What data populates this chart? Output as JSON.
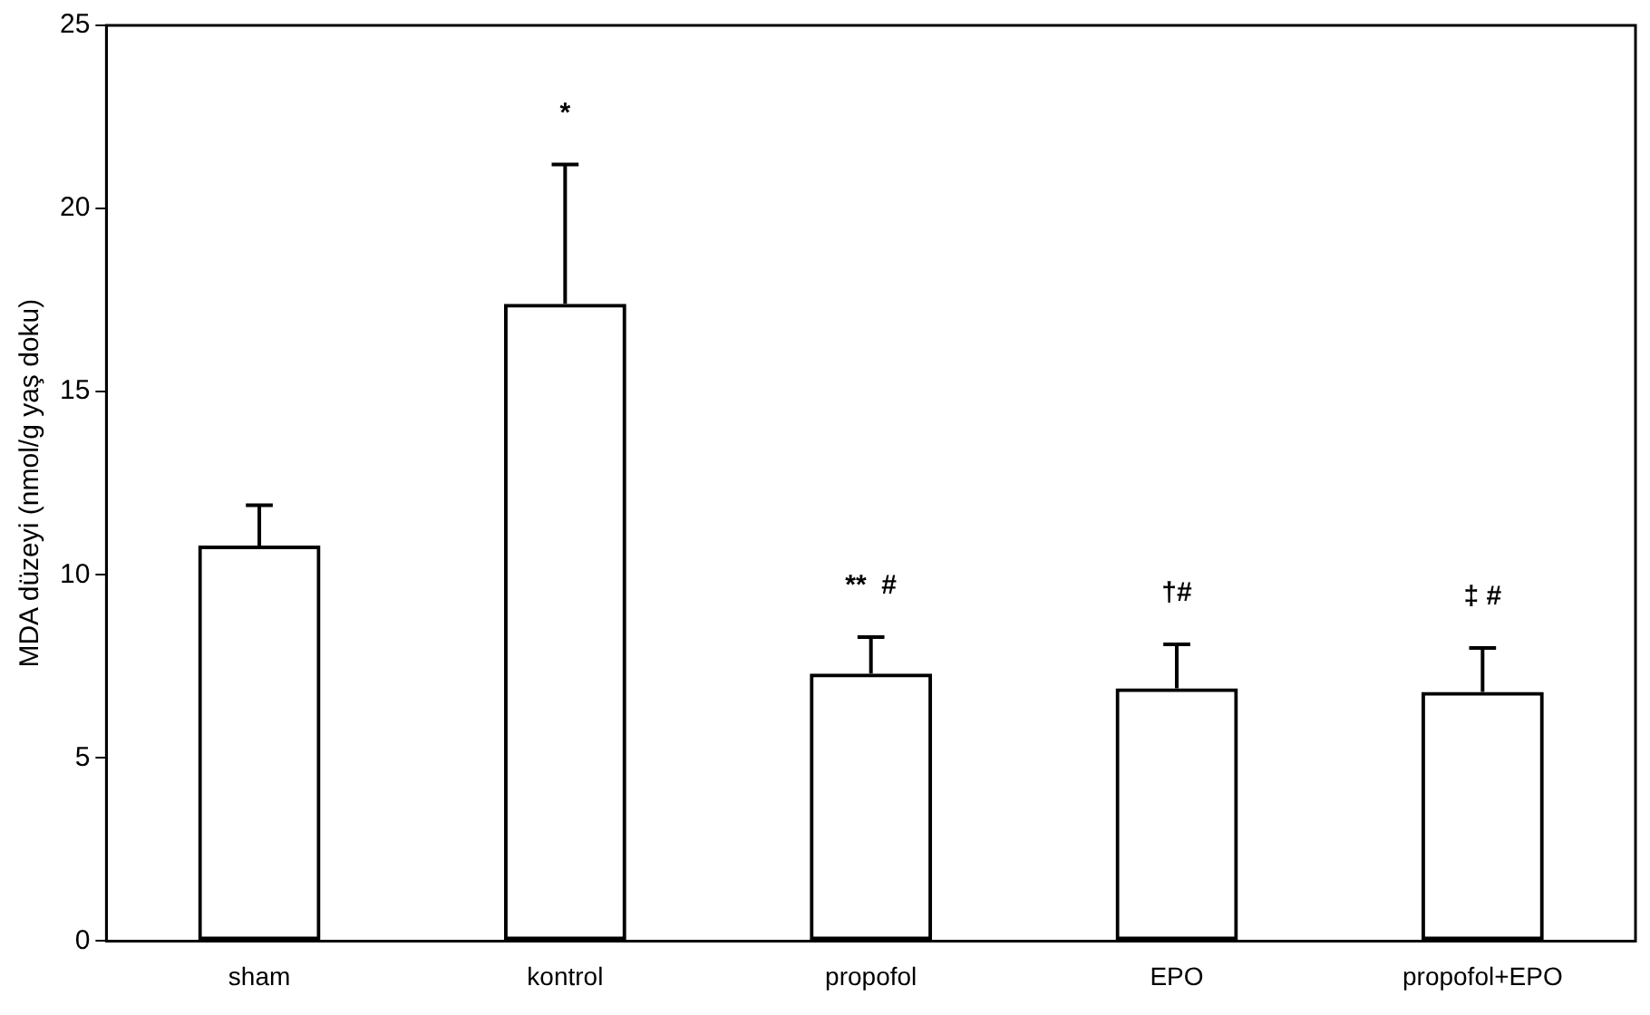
{
  "chart_data": {
    "type": "bar",
    "ylabel": "MDA düzeyi (nmol/g yaş doku)",
    "categories": [
      "sham",
      "kontrol",
      "propofol",
      "EPO",
      "propofol+EPO"
    ],
    "values": [
      10.8,
      17.4,
      7.3,
      6.9,
      6.8
    ],
    "errors": [
      [
        10.8,
        11.9
      ],
      [
        17.4,
        21.2
      ],
      [
        7.3,
        8.3
      ],
      [
        6.9,
        8.1
      ],
      [
        6.8,
        8.0
      ]
    ],
    "color": "#000000",
    "ylim": [
      0,
      25
    ],
    "yticks": [
      0,
      5,
      10,
      15,
      20,
      25
    ],
    "grid": false,
    "legend": false,
    "annotations": [
      "*",
      "**  #",
      "†#",
      "‡ #"
    ]
  }
}
